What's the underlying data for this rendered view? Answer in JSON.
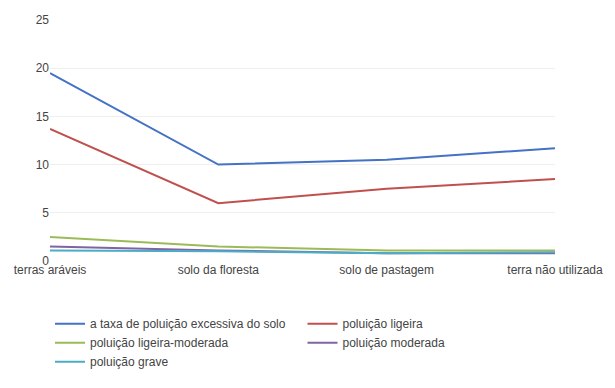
{
  "chart_data": {
    "type": "line",
    "categories": [
      "terras aráveis",
      "solo da floresta",
      "solo de pastagem",
      "terra não utilizada"
    ],
    "series": [
      {
        "name": "a taxa de poluição excessiva do solo",
        "color": "#4472c4",
        "values": [
          19.5,
          10.0,
          10.5,
          11.7
        ]
      },
      {
        "name": "poluição ligeira",
        "color": "#c0504d",
        "values": [
          13.7,
          6.0,
          7.5,
          8.5
        ]
      },
      {
        "name": "poluição ligeira-moderada",
        "color": "#9bbb59",
        "values": [
          2.5,
          1.5,
          1.1,
          1.1
        ]
      },
      {
        "name": "poluição moderada",
        "color": "#8064a2",
        "values": [
          1.5,
          1.1,
          0.8,
          0.8
        ]
      },
      {
        "name": "poluição grave",
        "color": "#4bacc6",
        "values": [
          1.1,
          1.0,
          0.8,
          0.9
        ]
      }
    ],
    "ylim": [
      0,
      25
    ],
    "yticks": [
      0,
      5,
      10,
      15,
      20,
      25
    ],
    "grid": true,
    "legend": "bottom"
  }
}
